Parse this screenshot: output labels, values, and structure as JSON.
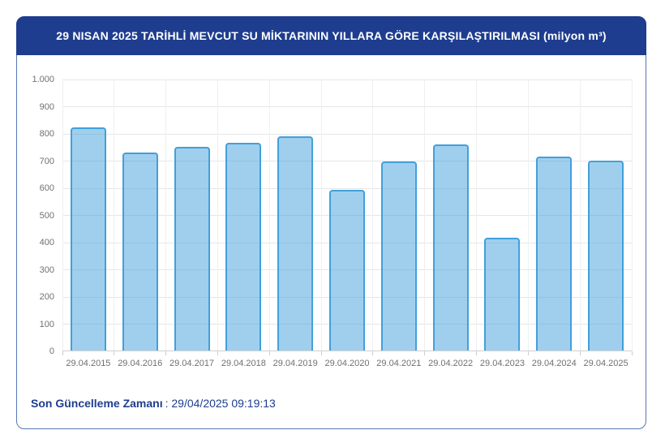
{
  "header": {
    "title": "29 NISAN 2025 TARİHLİ MEVCUT SU MİKTARININ YILLARA GÖRE KARŞILAŞTIRILMASI (milyon m³)"
  },
  "footer": {
    "label": "Son Güncelleme Zamanı",
    "value": ": 29/04/2025 09:19:13"
  },
  "chart_data": {
    "type": "bar",
    "title": "29 NISAN 2025 TARİHLİ MEVCUT SU MİKTARININ YILLARA GÖRE KARŞILAŞTIRILMASI (milyon m³)",
    "xlabel": "",
    "ylabel": "",
    "categories": [
      "29.04.2015",
      "29.04.2016",
      "29.04.2017",
      "29.04.2018",
      "29.04.2019",
      "29.04.2020",
      "29.04.2021",
      "29.04.2022",
      "29.04.2023",
      "29.04.2024",
      "29.04.2025"
    ],
    "values": [
      825,
      730,
      753,
      768,
      790,
      595,
      700,
      760,
      417,
      715,
      703
    ],
    "ylim": [
      0,
      1000
    ],
    "ytick_step": 100,
    "ytick_labels": [
      "0",
      "100",
      "200",
      "300",
      "400",
      "500",
      "600",
      "700",
      "800",
      "900",
      "1.000"
    ],
    "grid": true,
    "legend": "none"
  },
  "colors": {
    "header_bg": "#1e3d8e",
    "header_text": "#ffffff",
    "card_border": "#5578b4",
    "bar_fill": "rgba(65,160,220,0.5)",
    "bar_border": "#41a0dc",
    "gridline": "#e6e6e6",
    "axis_line": "#d0d0d0",
    "axis_label": "#707070",
    "footer_text": "#1e3d8e"
  }
}
